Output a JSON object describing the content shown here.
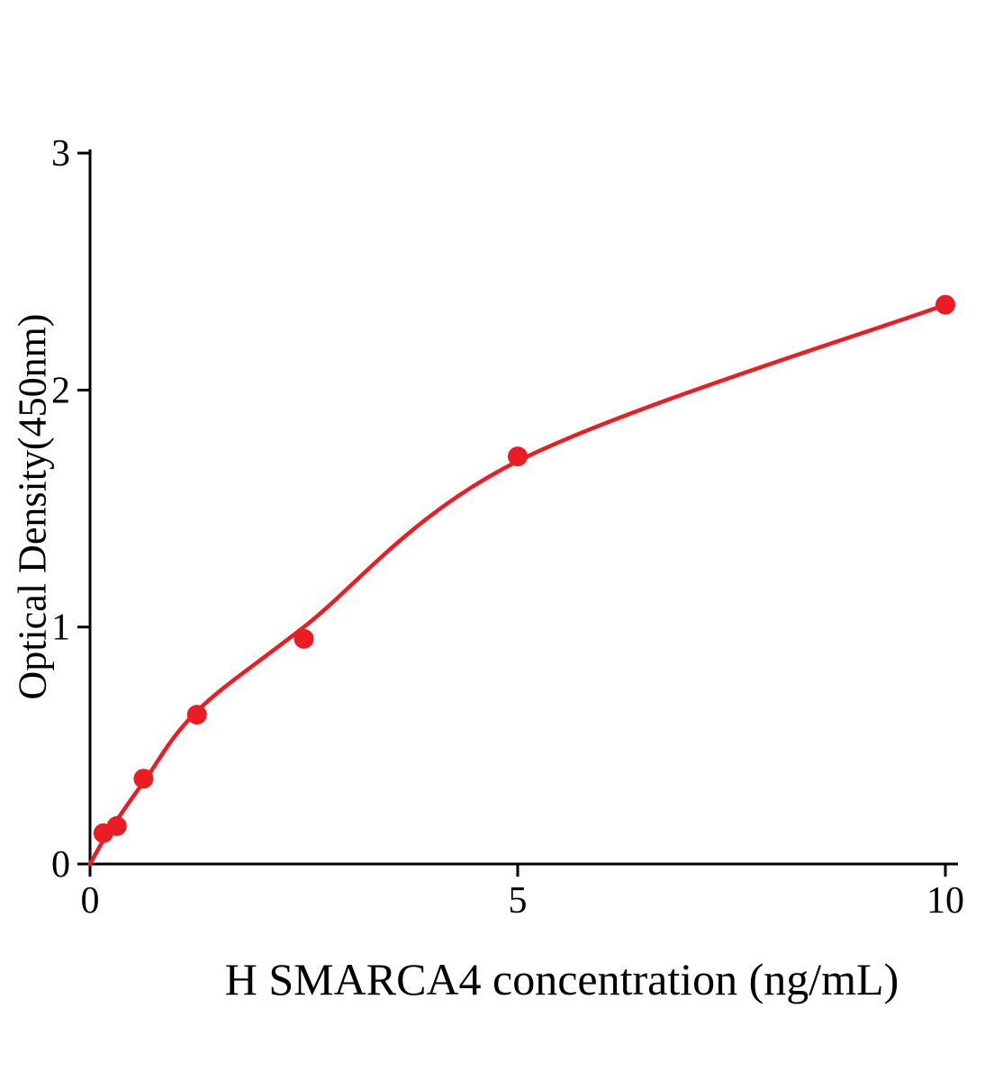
{
  "figure": {
    "background": "#ffffff"
  },
  "chart_data": {
    "type": "scatter",
    "title": "",
    "xlabel": "H SMARCA4 concentration (ng/mL)",
    "ylabel": "Optical Density(450nm)",
    "xlim": [
      0,
      10.2
    ],
    "ylim": [
      0,
      3
    ],
    "x_ticks": [
      0,
      5,
      10
    ],
    "x_tick_labels": [
      "0",
      "5",
      "10"
    ],
    "y_ticks": [
      0,
      1,
      2,
      3
    ],
    "y_tick_labels": [
      "0",
      "1",
      "2",
      "3"
    ],
    "grid": false,
    "legend": null,
    "point_color": "#ec1c24",
    "curve_color": "#ec1c24",
    "axis_color": "#000000",
    "points": {
      "x": [
        0.156,
        0.313,
        0.625,
        1.25,
        2.5,
        5,
        10
      ],
      "y": [
        0.13,
        0.16,
        0.36,
        0.63,
        0.95,
        1.72,
        2.36
      ]
    },
    "fitted_curve": {
      "x": [
        0,
        0.156,
        0.313,
        0.625,
        1.25,
        2.5,
        5,
        10
      ],
      "y": [
        0,
        0.1,
        0.185,
        0.345,
        0.645,
        1.0,
        1.7,
        2.36
      ]
    }
  }
}
